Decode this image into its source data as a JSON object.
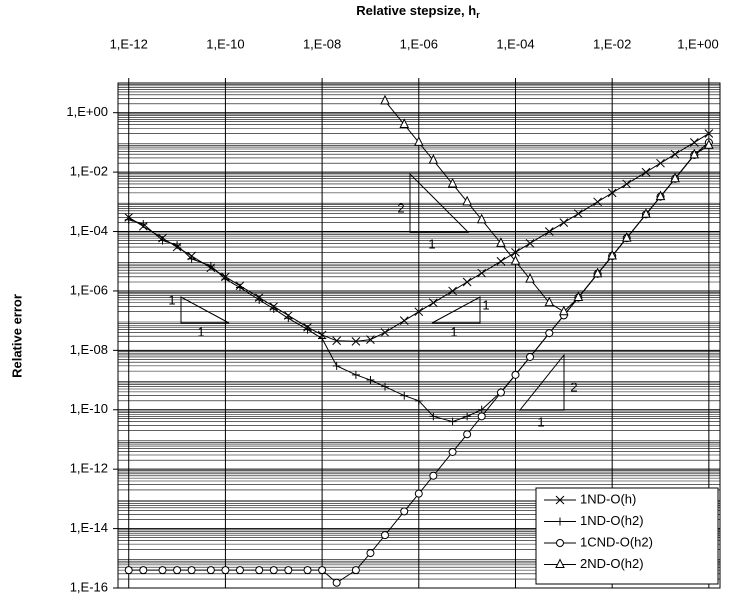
{
  "chart_data": {
    "type": "line",
    "x_label": "Relative stepsize, h",
    "x_label_subscript": "r",
    "y_label": "Relative error",
    "log_x": true,
    "log_y": true,
    "grid": true,
    "minor_grid": true,
    "legend": "lower right",
    "xlim": [
      6e-13,
      1.7
    ],
    "ylim": [
      1e-16,
      10
    ],
    "xticks": [
      {
        "value": 1e-12,
        "label": "1,E-12"
      },
      {
        "value": 1e-10,
        "label": "1,E-10"
      },
      {
        "value": 1e-08,
        "label": "1,E-08"
      },
      {
        "value": 1e-06,
        "label": "1,E-06"
      },
      {
        "value": 0.0001,
        "label": "1,E-04"
      },
      {
        "value": 0.01,
        "label": "1,E-02"
      },
      {
        "value": 1,
        "label": "1,E+00"
      }
    ],
    "yticks": [
      {
        "value": 1,
        "label": "1,E+00"
      },
      {
        "value": 0.01,
        "label": "1,E-02"
      },
      {
        "value": 0.0001,
        "label": "1,E-04"
      },
      {
        "value": 1e-06,
        "label": "1,E-06"
      },
      {
        "value": 1e-08,
        "label": "1,E-08"
      },
      {
        "value": 1e-10,
        "label": "1,E-10"
      },
      {
        "value": 1e-12,
        "label": "1,E-12"
      },
      {
        "value": 1e-14,
        "label": "1,E-14"
      },
      {
        "value": 1e-16,
        "label": "1,E-16"
      }
    ],
    "x": [
      1e-12,
      2e-12,
      5e-12,
      1e-11,
      2e-11,
      5e-11,
      1e-10,
      2e-10,
      5e-10,
      1e-09,
      2e-09,
      5e-09,
      1e-08,
      2e-08,
      5e-08,
      1e-07,
      2e-07,
      5e-07,
      1e-06,
      2e-06,
      5e-06,
      1e-05,
      2e-05,
      5e-05,
      0.0001,
      0.0002,
      0.0005,
      0.001,
      0.002,
      0.005,
      0.01,
      0.02,
      0.05,
      0.1,
      0.2,
      0.5,
      1
    ],
    "series": [
      {
        "name": "1ND-O(h)",
        "color": "#000000",
        "marker": "x",
        "values": [
          0.0003,
          0.00015,
          6e-05,
          3e-05,
          1.5e-05,
          6e-06,
          3e-06,
          1.5e-06,
          6e-07,
          3e-07,
          1.5e-07,
          6e-08,
          3.3e-08,
          2.1e-08,
          2e-08,
          2.3e-08,
          4e-08,
          1e-07,
          2e-07,
          4e-07,
          1e-06,
          2e-06,
          4e-06,
          1e-05,
          2e-05,
          4e-05,
          0.0001,
          0.0002,
          0.0004,
          0.001,
          0.002,
          0.004,
          0.01,
          0.02,
          0.04,
          0.1,
          0.2
        ]
      },
      {
        "name": "1ND-O(h2)",
        "color": "#000000",
        "marker": "plus",
        "values": [
          0.00025,
          0.00018,
          5e-05,
          3.5e-05,
          1.2e-05,
          7e-06,
          2.5e-06,
          1.3e-06,
          5e-07,
          2.5e-07,
          1.2e-07,
          5e-08,
          2.5e-08,
          3e-09,
          1.5e-09,
          1e-09,
          6e-10,
          3e-10,
          2e-10,
          6e-11,
          4e-11,
          6e-11,
          1e-10,
          4e-10,
          1.5e-09,
          6e-09,
          3.8e-08,
          1.5e-07,
          6e-07,
          3.8e-06,
          1.5e-05,
          6e-05,
          0.00038,
          0.0015,
          0.006,
          0.038,
          0.1
        ]
      },
      {
        "name": "1CND-O(h2)",
        "color": "#000000",
        "marker": "circle",
        "values": [
          4e-16,
          4e-16,
          4e-16,
          4e-16,
          4e-16,
          4e-16,
          4e-16,
          4e-16,
          4e-16,
          4e-16,
          4e-16,
          4e-16,
          4e-16,
          1.5e-16,
          4e-16,
          1.5e-15,
          6e-15,
          3.8e-14,
          1.5e-13,
          6e-13,
          3.8e-12,
          1.5e-11,
          6e-11,
          3.8e-10,
          1.5e-09,
          6e-09,
          3.8e-08,
          1.5e-07,
          6e-07,
          3.8e-06,
          1.5e-05,
          6e-05,
          0.00038,
          0.0015,
          0.006,
          0.038,
          0.1
        ]
      },
      {
        "name": "2ND-O(h2)",
        "color": "#000000",
        "marker": "triangle",
        "values": [
          null,
          null,
          null,
          null,
          null,
          null,
          null,
          null,
          null,
          null,
          null,
          null,
          null,
          null,
          null,
          null,
          2.5,
          0.4,
          0.1,
          0.025,
          0.004,
          0.001,
          0.00025,
          4e-05,
          1e-05,
          2.5e-06,
          4e-07,
          2e-07,
          6e-07,
          3.8e-06,
          1.5e-05,
          6e-05,
          0.00038,
          0.0015,
          0.006,
          0.038,
          0.08
        ]
      }
    ],
    "annotations": [
      "1",
      "1",
      "1",
      "1",
      "2",
      "1",
      "2",
      "1"
    ]
  }
}
